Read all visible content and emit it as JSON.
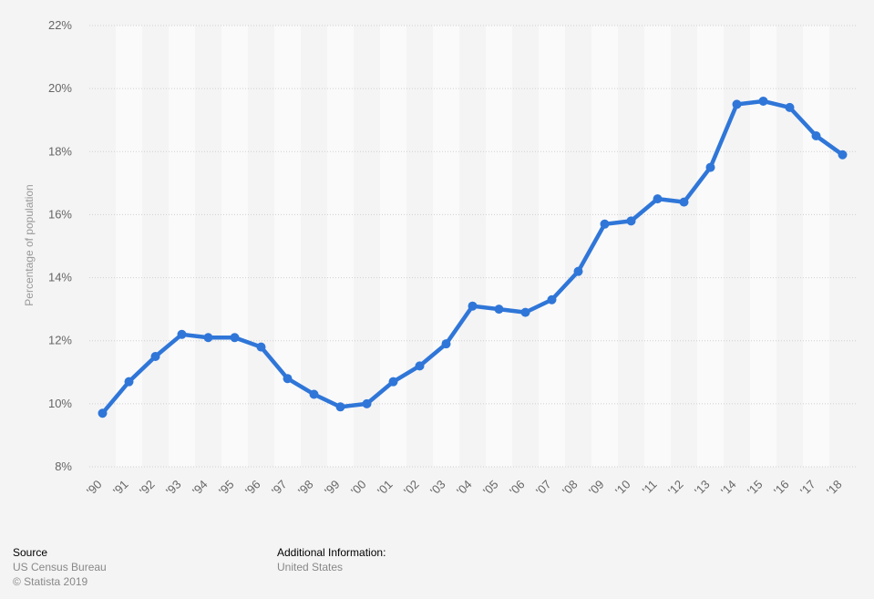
{
  "chart_data": {
    "type": "line",
    "title": "",
    "xlabel": "",
    "ylabel": "Percentage of population",
    "categories": [
      "'90",
      "'91",
      "'92",
      "'93",
      "'94",
      "'95",
      "'96",
      "'97",
      "'98",
      "'99",
      "'00",
      "'01",
      "'02",
      "'03",
      "'04",
      "'05",
      "'06",
      "'07",
      "'08",
      "'09",
      "'10",
      "'11",
      "'12",
      "'13",
      "'14",
      "'15",
      "'16",
      "'17",
      "'18"
    ],
    "series": [
      {
        "values": [
          9.7,
          10.7,
          11.5,
          12.2,
          12.1,
          12.1,
          11.8,
          10.8,
          10.3,
          9.9,
          10.0,
          10.7,
          11.2,
          11.9,
          13.1,
          13.0,
          12.9,
          13.3,
          14.2,
          15.7,
          15.8,
          16.5,
          16.4,
          17.5,
          19.5,
          19.6,
          19.4,
          18.5,
          17.9
        ],
        "color": "#2f76d8"
      }
    ],
    "ylim": [
      8,
      22
    ],
    "yticks": [
      8,
      10,
      12,
      14,
      16,
      18,
      20,
      22
    ],
    "ytick_labels": [
      "8%",
      "10%",
      "12%",
      "14%",
      "16%",
      "18%",
      "20%",
      "22%"
    ],
    "grid": true,
    "legend": "none"
  },
  "footer": {
    "source_heading": "Source",
    "source_name": "US Census Bureau",
    "copyright": "© Statista 2019",
    "info_heading": "Additional Information:",
    "info_text": "United States"
  }
}
